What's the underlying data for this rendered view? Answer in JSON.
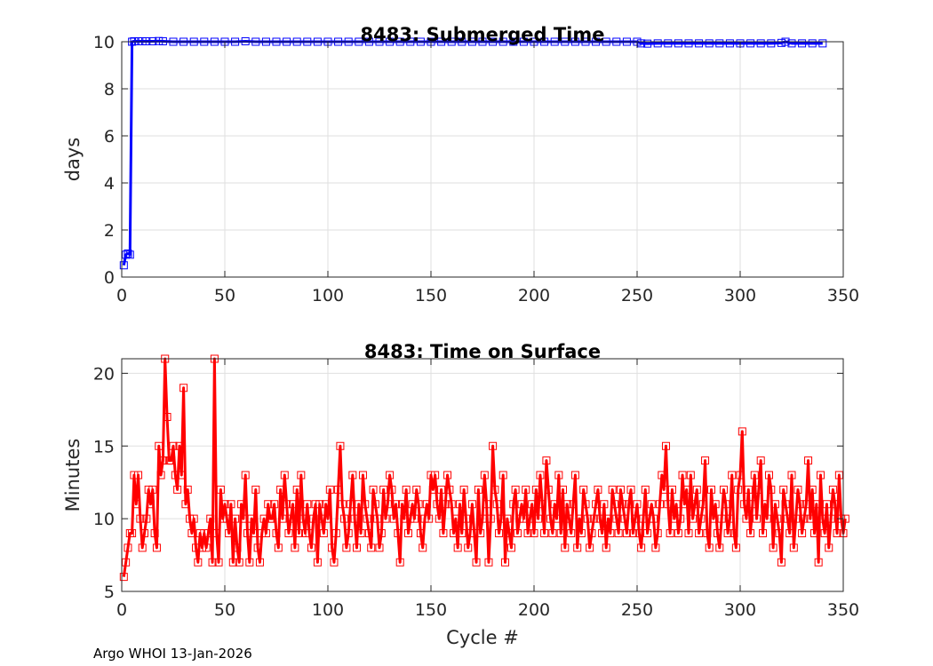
{
  "footer": "Argo WHOI 13-Jan-2026",
  "chart_data": [
    {
      "type": "line",
      "title": "8483: Submerged Time",
      "xlabel": "",
      "ylabel": "days",
      "xlim": [
        0,
        350
      ],
      "ylim": [
        0,
        10
      ],
      "xticks": [
        0,
        50,
        100,
        150,
        200,
        250,
        300,
        350
      ],
      "yticks": [
        0,
        2,
        4,
        6,
        8,
        10
      ],
      "grid": true,
      "color": "#0000ff",
      "marker": "square",
      "series": [
        {
          "name": "submerged_time",
          "x": [
            1,
            2,
            3,
            4,
            5,
            6,
            8,
            10,
            12,
            15,
            18,
            20,
            25,
            30,
            35,
            40,
            45,
            50,
            55,
            60,
            65,
            70,
            75,
            80,
            85,
            90,
            95,
            100,
            105,
            110,
            115,
            120,
            125,
            130,
            135,
            140,
            145,
            150,
            155,
            160,
            165,
            170,
            175,
            180,
            185,
            190,
            195,
            200,
            205,
            210,
            215,
            220,
            225,
            230,
            235,
            240,
            245,
            250,
            252,
            255,
            260,
            265,
            270,
            275,
            280,
            285,
            290,
            295,
            300,
            305,
            310,
            315,
            320,
            322,
            325,
            330,
            335,
            340
          ],
          "y": [
            0.5,
            0.95,
            1.0,
            0.95,
            10.0,
            10.02,
            10.02,
            10.02,
            10.02,
            10.02,
            10.03,
            10.02,
            10.0,
            10.0,
            10.0,
            10.0,
            10.0,
            10.0,
            10.0,
            10.02,
            10.0,
            10.0,
            10.0,
            10.0,
            10.0,
            10.0,
            10.0,
            10.0,
            10.0,
            10.0,
            10.0,
            10.0,
            10.0,
            10.0,
            10.0,
            10.0,
            10.0,
            10.0,
            10.0,
            10.0,
            10.0,
            10.0,
            10.0,
            10.0,
            10.0,
            10.0,
            10.0,
            10.0,
            10.0,
            10.0,
            10.0,
            10.0,
            10.0,
            10.0,
            10.0,
            10.0,
            10.0,
            10.0,
            9.93,
            9.92,
            9.93,
            9.93,
            9.93,
            9.93,
            9.93,
            9.93,
            9.93,
            9.93,
            9.93,
            9.93,
            9.93,
            9.93,
            9.95,
            10.0,
            9.93,
            9.93,
            9.93,
            9.93
          ]
        }
      ]
    },
    {
      "type": "line",
      "title": "8483: Time on Surface",
      "xlabel": "Cycle #",
      "ylabel": "Minutes",
      "xlim": [
        0,
        350
      ],
      "ylim": [
        5,
        21
      ],
      "xticks": [
        0,
        50,
        100,
        150,
        200,
        250,
        300,
        350
      ],
      "yticks": [
        5,
        10,
        15,
        20
      ],
      "grid": true,
      "color": "#ff0000",
      "marker": "square",
      "series": [
        {
          "name": "surface_time",
          "x_start": 1,
          "y": [
            6,
            7,
            8,
            9,
            9,
            13,
            11,
            13,
            10,
            8,
            9,
            10,
            12,
            11,
            12,
            9,
            8,
            15,
            13,
            14,
            21,
            17,
            14,
            14,
            15,
            13,
            12,
            15,
            13,
            19,
            11,
            12,
            10,
            9,
            10,
            8,
            7,
            9,
            8,
            9,
            8,
            9,
            10,
            7,
            21,
            9,
            7,
            12,
            10,
            11,
            10,
            9,
            11,
            7,
            10,
            8,
            7,
            11,
            10,
            13,
            9,
            7,
            10,
            9,
            12,
            8,
            7,
            9,
            10,
            9,
            11,
            10,
            10,
            11,
            9,
            8,
            12,
            10,
            13,
            11,
            9,
            10,
            11,
            8,
            12,
            9,
            13,
            10,
            9,
            11,
            9,
            8,
            10,
            11,
            7,
            11,
            10,
            9,
            11,
            10,
            12,
            8,
            7,
            9,
            12,
            15,
            11,
            10,
            8,
            9,
            11,
            13,
            10,
            8,
            11,
            9,
            13,
            11,
            10,
            9,
            8,
            12,
            11,
            10,
            8,
            9,
            12,
            10,
            11,
            13,
            12,
            10,
            11,
            9,
            7,
            11,
            10,
            12,
            9,
            10,
            11,
            10,
            12,
            11,
            9,
            8,
            10,
            11,
            10,
            13,
            12,
            13,
            11,
            10,
            12,
            9,
            11,
            13,
            12,
            11,
            9,
            10,
            8,
            11,
            9,
            12,
            10,
            8,
            9,
            11,
            9,
            7,
            12,
            9,
            10,
            13,
            11,
            7,
            10,
            15,
            12,
            11,
            9,
            10,
            13,
            7,
            10,
            9,
            8,
            11,
            12,
            9,
            10,
            11,
            10,
            12,
            9,
            10,
            11,
            9,
            12,
            10,
            13,
            11,
            9,
            14,
            12,
            10,
            9,
            11,
            10,
            13,
            9,
            12,
            8,
            11,
            10,
            9,
            11,
            13,
            8,
            10,
            9,
            12,
            11,
            10,
            8,
            9,
            10,
            11,
            12,
            10,
            9,
            11,
            8,
            10,
            9,
            12,
            11,
            10,
            9,
            12,
            11,
            10,
            9,
            11,
            12,
            9,
            10,
            11,
            9,
            8,
            10,
            12,
            9,
            10,
            11,
            10,
            8,
            9,
            11,
            13,
            12,
            15,
            11,
            9,
            12,
            10,
            11,
            9,
            10,
            13,
            11,
            12,
            9,
            13,
            10,
            11,
            12,
            9,
            10,
            11,
            14,
            9,
            8,
            12,
            10,
            11,
            9,
            8,
            10,
            12,
            11,
            9,
            10,
            13,
            9,
            8,
            12,
            13,
            16,
            11,
            10,
            12,
            9,
            11,
            13,
            10,
            12,
            14,
            9,
            11,
            10,
            13,
            12,
            8,
            11,
            10,
            9,
            7,
            12,
            11,
            10,
            9,
            13,
            8,
            10,
            12,
            11,
            9,
            10,
            11,
            14,
            10,
            12,
            9,
            11,
            7,
            13,
            10,
            9,
            11,
            8,
            10,
            12,
            11,
            9,
            13,
            10,
            9,
            10
          ]
        }
      ]
    }
  ]
}
